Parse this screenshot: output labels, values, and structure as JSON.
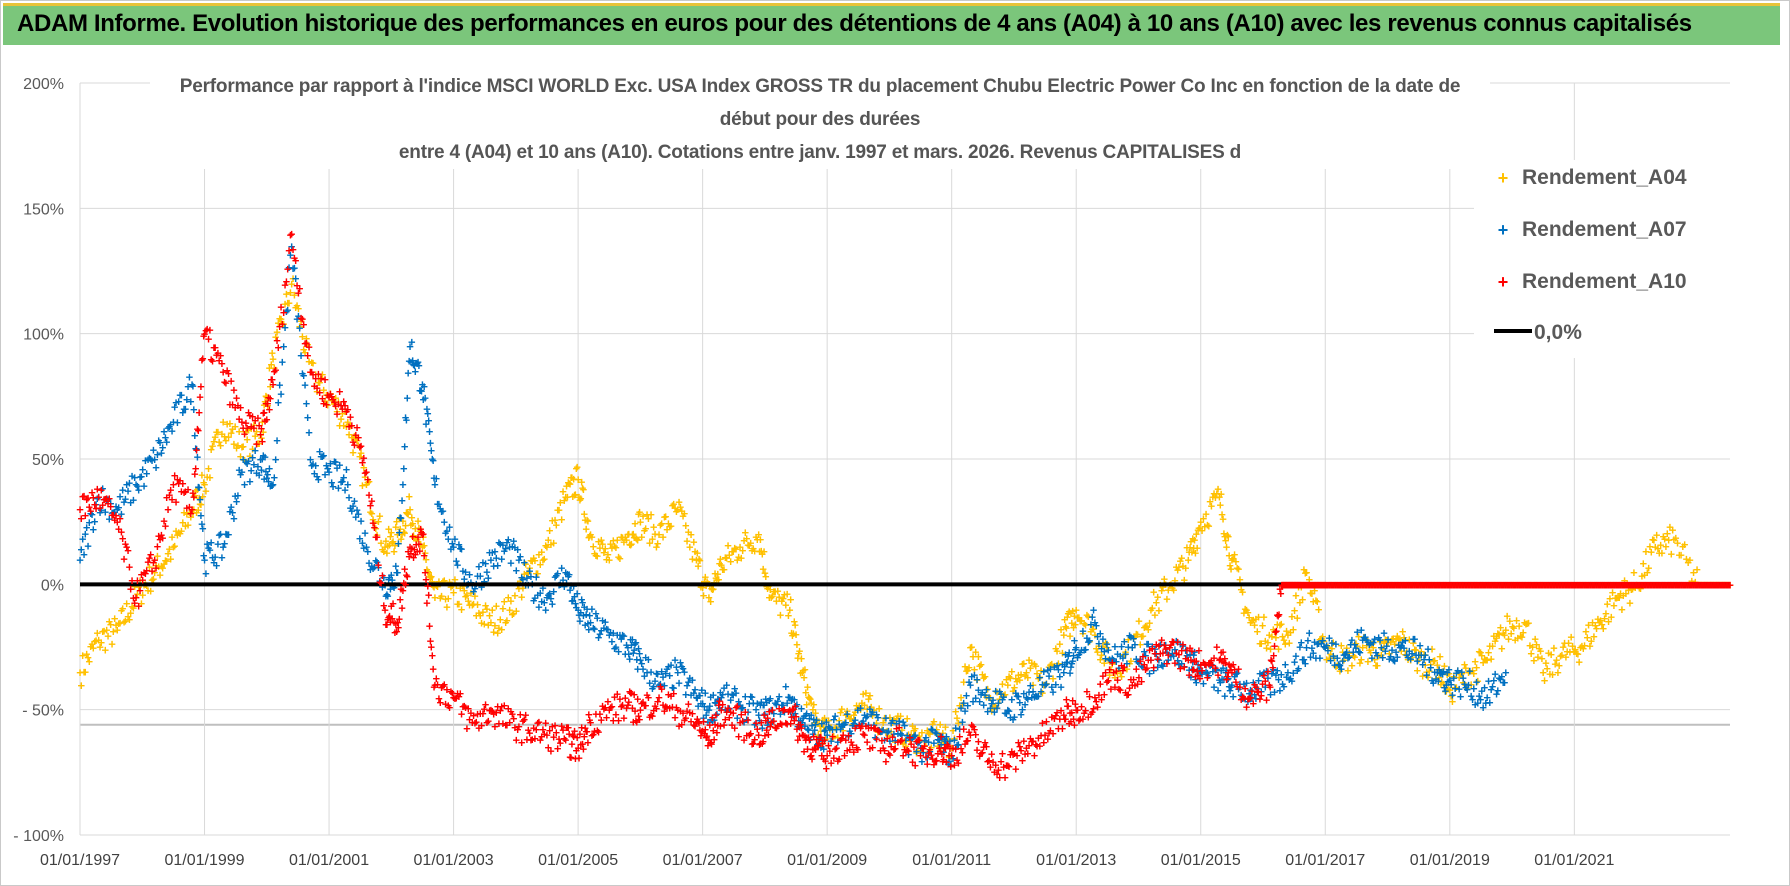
{
  "banner": {
    "title": "ADAM Informe. Evolution historique des performances en euros pour des détentions de 4 ans (A04) à 10 ans (A10) avec les revenus connus capitalisés"
  },
  "chart_data": {
    "type": "scatter",
    "title_lines": [
      "Performance par rapport à l'indice MSCI WORLD Exc. USA Index GROSS TR  du placement Chubu Electric Power Co Inc en fonction de la date de",
      "début pour des durées",
      "entre 4 (A04) et 10 ans (A10).  Cotations entre janv. 1997 et mars. 2026. Revenus CAPITALISES d"
    ],
    "xlabel": "",
    "ylabel": "",
    "xlim": [
      1997.0,
      2023.5
    ],
    "ylim": [
      -100,
      200
    ],
    "y_ticks": [
      200,
      150,
      100,
      50,
      0,
      -50,
      -100
    ],
    "y_tick_labels": [
      "200%",
      "150%",
      "100%",
      "50%",
      "0%",
      "- 50%",
      "- 100%"
    ],
    "x_ticks": [
      1997,
      1999,
      2001,
      2003,
      2005,
      2007,
      2009,
      2011,
      2013,
      2015,
      2017,
      2019,
      2021
    ],
    "x_tick_labels": [
      "01/01/1997",
      "01/01/1999",
      "01/01/2001",
      "01/01/2003",
      "01/01/2005",
      "01/01/2007",
      "01/01/2009",
      "01/01/2011",
      "01/01/2013",
      "01/01/2015",
      "01/01/2017",
      "01/01/2019",
      "01/01/2021"
    ],
    "grid": true,
    "legend_position": "top-right",
    "reference_line": {
      "name": "0,0%",
      "y": 0,
      "color": "#000000"
    },
    "series": [
      {
        "name": "Rendement_A04",
        "color": "#ffc000",
        "x": [
          1997.0,
          1997.3,
          1997.6,
          1997.9,
          1998.2,
          1998.5,
          1998.8,
          1999.0,
          1999.3,
          1999.6,
          1999.9,
          2000.1,
          2000.4,
          2000.7,
          2001.0,
          2001.3,
          2001.6,
          2001.9,
          2002.1,
          2002.3,
          2002.5,
          2002.7,
          2003.0,
          2003.3,
          2003.6,
          2003.9,
          2004.2,
          2004.5,
          2004.8,
          2005.0,
          2005.2,
          2005.5,
          2005.8,
          2006.0,
          2006.3,
          2006.6,
          2006.9,
          2007.1,
          2007.3,
          2007.6,
          2007.9,
          2008.1,
          2008.4,
          2008.6,
          2008.8,
          2009.0,
          2009.3,
          2009.6,
          2009.9,
          2010.2,
          2010.5,
          2010.8,
          2011.0,
          2011.3,
          2011.6,
          2011.9,
          2012.2,
          2012.5,
          2012.8,
          2013.0,
          2013.3,
          2013.6,
          2013.9,
          2014.2,
          2014.5,
          2014.8,
          2015.0,
          2015.3,
          2015.5,
          2015.8,
          2016.1,
          2016.4,
          2016.7,
          2017.0,
          2017.3,
          2017.6,
          2017.9,
          2018.2,
          2018.5,
          2018.8,
          2019.0,
          2019.3,
          2019.6,
          2019.9,
          2020.2,
          2020.5,
          2020.8,
          2021.1,
          2021.4,
          2021.7,
          2022.0,
          2022.3,
          2022.6,
          2023.0,
          2023.5
        ],
        "values": [
          -35,
          -22,
          -18,
          -5,
          5,
          15,
          30,
          40,
          65,
          55,
          60,
          90,
          120,
          85,
          75,
          65,
          40,
          15,
          20,
          30,
          15,
          -5,
          -3,
          -8,
          -15,
          -10,
          5,
          15,
          35,
          42,
          20,
          10,
          20,
          25,
          20,
          30,
          10,
          -5,
          8,
          15,
          20,
          -5,
          -10,
          -35,
          -55,
          -60,
          -52,
          -48,
          -55,
          -58,
          -62,
          -60,
          -65,
          -25,
          -45,
          -40,
          -35,
          -40,
          -20,
          -10,
          -20,
          -35,
          -25,
          -10,
          0,
          10,
          25,
          35,
          10,
          -15,
          -20,
          -20,
          5,
          -25,
          -30,
          -25,
          -28,
          -22,
          -30,
          -32,
          -42,
          -35,
          -30,
          -18,
          -15,
          -35,
          -28,
          -25,
          -15,
          -5,
          0,
          15,
          18,
          0,
          0
        ]
      },
      {
        "name": "Rendement_A07",
        "color": "#0070c0",
        "x": [
          1997.0,
          1997.3,
          1997.6,
          1997.9,
          1998.2,
          1998.5,
          1998.8,
          1999.0,
          1999.3,
          1999.6,
          1999.9,
          2000.1,
          2000.4,
          2000.7,
          2001.0,
          2001.3,
          2001.6,
          2001.9,
          2002.1,
          2002.3,
          2002.5,
          2002.7,
          2003.0,
          2003.3,
          2003.6,
          2003.9,
          2004.2,
          2004.5,
          2004.8,
          2005.0,
          2005.2,
          2005.5,
          2005.8,
          2006.0,
          2006.3,
          2006.6,
          2006.9,
          2007.1,
          2007.3,
          2007.6,
          2007.9,
          2008.1,
          2008.4,
          2008.6,
          2008.8,
          2009.0,
          2009.3,
          2009.6,
          2009.9,
          2010.2,
          2010.5,
          2010.8,
          2011.0,
          2011.3,
          2011.6,
          2011.9,
          2012.2,
          2012.5,
          2012.8,
          2013.0,
          2013.3,
          2013.6,
          2013.9,
          2014.2,
          2014.5,
          2014.8,
          2015.0,
          2015.3,
          2015.5,
          2015.8,
          2016.1,
          2016.4,
          2016.7,
          2017.0,
          2017.3,
          2017.6,
          2017.9,
          2018.2,
          2018.5,
          2018.8,
          2019.0,
          2019.3,
          2019.6,
          2019.9
        ],
        "values": [
          10,
          35,
          30,
          40,
          50,
          65,
          80,
          10,
          15,
          45,
          50,
          40,
          135,
          50,
          45,
          40,
          15,
          0,
          5,
          95,
          80,
          40,
          15,
          0,
          10,
          15,
          0,
          -5,
          5,
          -10,
          -15,
          -20,
          -25,
          -30,
          -40,
          -35,
          -45,
          -50,
          -45,
          -48,
          -52,
          -50,
          -45,
          -55,
          -58,
          -60,
          -55,
          -52,
          -58,
          -60,
          -65,
          -62,
          -68,
          -40,
          -45,
          -50,
          -45,
          -40,
          -35,
          -25,
          -15,
          -30,
          -25,
          -30,
          -25,
          -30,
          -35,
          -38,
          -40,
          -42,
          -40,
          -35,
          -25,
          -25,
          -28,
          -22,
          -25,
          -25,
          -28,
          -35,
          -38,
          -40,
          -45,
          -35
        ]
      },
      {
        "name": "Rendement_A10",
        "color": "#ff0000",
        "x": [
          1997.0,
          1997.3,
          1997.6,
          1997.9,
          1998.2,
          1998.5,
          1998.8,
          1999.0,
          1999.3,
          1999.6,
          1999.9,
          2000.1,
          2000.4,
          2000.7,
          2001.0,
          2001.3,
          2001.6,
          2001.9,
          2002.1,
          2002.3,
          2002.5,
          2002.7,
          2003.0,
          2003.3,
          2003.6,
          2003.9,
          2004.2,
          2004.5,
          2004.8,
          2005.0,
          2005.2,
          2005.5,
          2005.8,
          2006.0,
          2006.3,
          2006.6,
          2006.9,
          2007.1,
          2007.3,
          2007.6,
          2007.9,
          2008.1,
          2008.4,
          2008.6,
          2008.8,
          2009.0,
          2009.3,
          2009.6,
          2009.9,
          2010.2,
          2010.5,
          2010.8,
          2011.0,
          2011.3,
          2011.6,
          2011.9,
          2012.2,
          2012.5,
          2012.8,
          2013.0,
          2013.3,
          2013.6,
          2013.9,
          2014.2,
          2014.5,
          2014.8,
          2015.0,
          2015.3,
          2015.5,
          2015.8,
          2016.1,
          2016.3,
          2016.6,
          2017.0,
          2017.5,
          2018.0,
          2018.5,
          2019.0,
          2019.5,
          2020.0,
          2020.5,
          2021.0,
          2021.5,
          2022.0,
          2022.5,
          2023.0,
          2023.5
        ],
        "values": [
          30,
          35,
          25,
          -5,
          10,
          40,
          30,
          100,
          85,
          65,
          60,
          80,
          140,
          85,
          75,
          70,
          45,
          -10,
          -15,
          15,
          20,
          -40,
          -45,
          -55,
          -50,
          -55,
          -58,
          -60,
          -62,
          -65,
          -55,
          -50,
          -48,
          -50,
          -45,
          -50,
          -55,
          -62,
          -50,
          -55,
          -60,
          -55,
          -50,
          -60,
          -65,
          -68,
          -62,
          -60,
          -65,
          -62,
          -68,
          -65,
          -68,
          -60,
          -70,
          -72,
          -65,
          -60,
          -52,
          -50,
          -45,
          -35,
          -40,
          -30,
          -25,
          -30,
          -32,
          -30,
          -35,
          -45,
          -40,
          0,
          0,
          0,
          0,
          0,
          0,
          0,
          0,
          0,
          0,
          0,
          0,
          0,
          0,
          0,
          0
        ]
      }
    ]
  }
}
